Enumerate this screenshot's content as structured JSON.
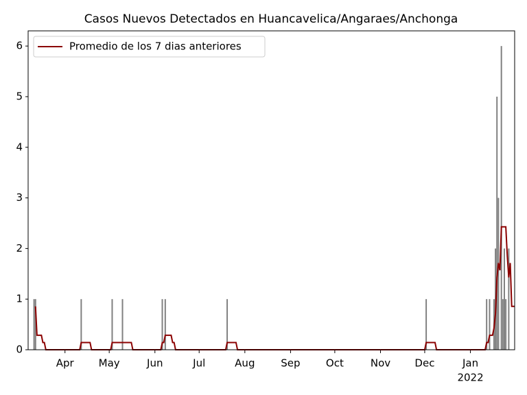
{
  "chart_data": {
    "type": "bar-line",
    "title": "Casos Nuevos Detectados en Huancavelica/Angaraes/Anchonga",
    "xlim": [
      -25,
      305
    ],
    "xticks": [
      {
        "value": 0,
        "label": "Apr"
      },
      {
        "value": 30,
        "label": "May"
      },
      {
        "value": 61,
        "label": "Jun"
      },
      {
        "value": 91,
        "label": "Jul"
      },
      {
        "value": 122,
        "label": "Aug"
      },
      {
        "value": 153,
        "label": "Sep"
      },
      {
        "value": 183,
        "label": "Oct"
      },
      {
        "value": 214,
        "label": "Nov"
      },
      {
        "value": 244,
        "label": "Dec"
      },
      {
        "value": 275,
        "label": "Jan"
      }
    ],
    "year_label": "2022",
    "ylim": [
      0,
      6.3
    ],
    "yticks": [
      0,
      1,
      2,
      3,
      4,
      5,
      6
    ],
    "legend": "upper left",
    "bars": {
      "color": "#808080",
      "x": [
        -21,
        -20,
        11,
        32,
        39,
        66,
        68,
        110,
        245,
        286,
        288,
        291,
        292,
        293,
        294,
        296,
        297,
        298,
        299,
        301
      ],
      "values": [
        1,
        1,
        1,
        1,
        1,
        1,
        1,
        1,
        1,
        1,
        1,
        1,
        2,
        5,
        3,
        6,
        1,
        2,
        1,
        2
      ]
    },
    "series": [
      {
        "name": "Promedio de los 7 dias anteriores",
        "color": "#8b0000",
        "x": [
          -20,
          -19,
          -16,
          -15,
          -14,
          -13,
          10,
          11,
          17,
          18,
          31,
          32,
          45,
          46,
          65,
          66,
          67,
          68,
          72,
          73,
          74,
          75,
          109,
          110,
          116,
          117,
          244,
          245,
          251,
          252,
          285,
          286,
          287,
          288,
          290,
          291,
          292,
          293,
          294,
          295,
          296,
          299,
          300,
          301,
          302,
          303,
          305
        ],
        "values": [
          0.857,
          0.286,
          0.286,
          0.143,
          0.143,
          0,
          0,
          0.143,
          0.143,
          0,
          0,
          0.143,
          0.143,
          0,
          0,
          0.143,
          0.143,
          0.286,
          0.286,
          0.143,
          0.143,
          0,
          0,
          0.143,
          0.143,
          0,
          0,
          0.143,
          0.143,
          0,
          0,
          0.143,
          0.143,
          0.286,
          0.286,
          0.429,
          0.714,
          1.429,
          1.714,
          1.571,
          2.429,
          2.429,
          1.857,
          1.429,
          1.714,
          0.857,
          0.857
        ]
      }
    ]
  }
}
